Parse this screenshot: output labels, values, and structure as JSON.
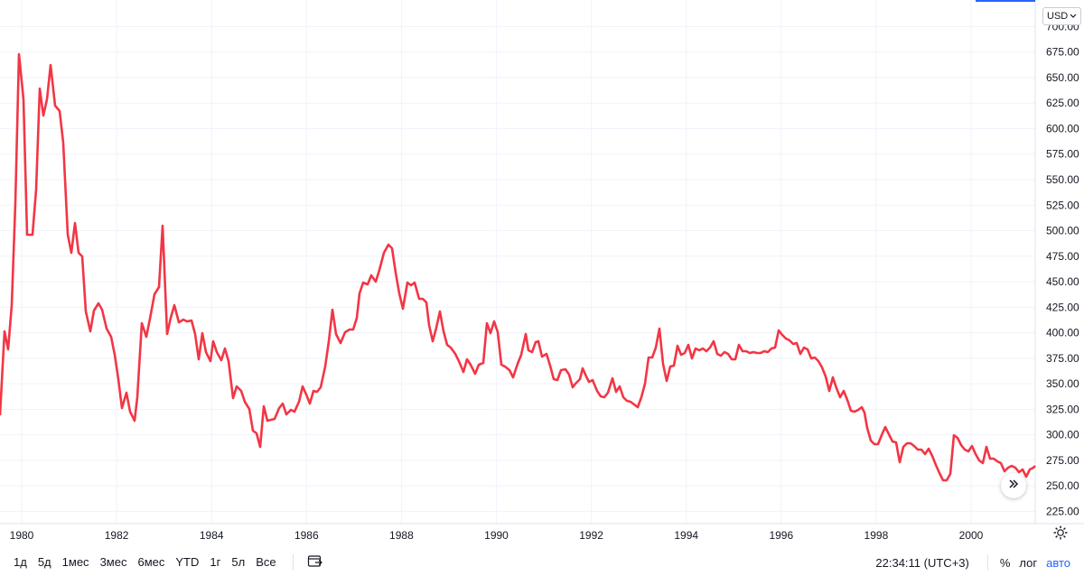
{
  "chart_data": {
    "type": "line",
    "title": "",
    "xlabel": "",
    "ylabel": "",
    "color": "#f23645",
    "xlim": [
      1979.95,
      1981.55
    ],
    "ylim": [
      213,
      726
    ],
    "y_ticks": [
      "225.00",
      "250.00",
      "275.00",
      "300.00",
      "325.00",
      "350.00",
      "375.00",
      "400.00",
      "425.00",
      "450.00",
      "475.00",
      "500.00",
      "525.00",
      "550.00",
      "575.00",
      "600.00",
      "625.00",
      "650.00",
      "675.00",
      "700.00"
    ],
    "x_ticks": [
      "1980",
      "1982",
      "1984",
      "1986",
      "1988",
      "1990",
      "1992",
      "1994",
      "1996",
      "1998",
      "2000"
    ],
    "x": [
      1979.96,
      1980.04,
      1980.09,
      1980.16,
      1980.23,
      1980.3,
      1980.37,
      1980.42,
      1980.44,
      1980.47,
      1980.52,
      1980.57,
      1980.62,
      1980.66,
      1980.71,
      1980.76,
      1980.81,
      1980.85,
      1980.9,
      1980.95,
      1981.0,
      1981.05,
      1981.1,
      1981.14,
      1981.19,
      1981.24,
      1981.29,
      1981.34,
      1981.39,
      1981.44,
      1981.49,
      1981.55
    ],
    "y": [
      322,
      405,
      385,
      430,
      537,
      681,
      640,
      502,
      501,
      546,
      646,
      620,
      640,
      670,
      630,
      625,
      593,
      502,
      483,
      514,
      483,
      479,
      424,
      404,
      426,
      433,
      427,
      409,
      399,
      381,
      356,
      328
    ],
    "series_note": ""
  },
  "ui": {
    "currency": "USD",
    "ranges": [
      "1д",
      "5д",
      "1мес",
      "3мес",
      "6мес",
      "YTD",
      "1г",
      "5л",
      "Все"
    ],
    "clock": "22:34:11 (UTC+3)",
    "percent_label": "%",
    "log_label": "лог",
    "auto_label": "авто",
    "accent": "#2962ff",
    "grid_color": "#f0f3fa"
  }
}
